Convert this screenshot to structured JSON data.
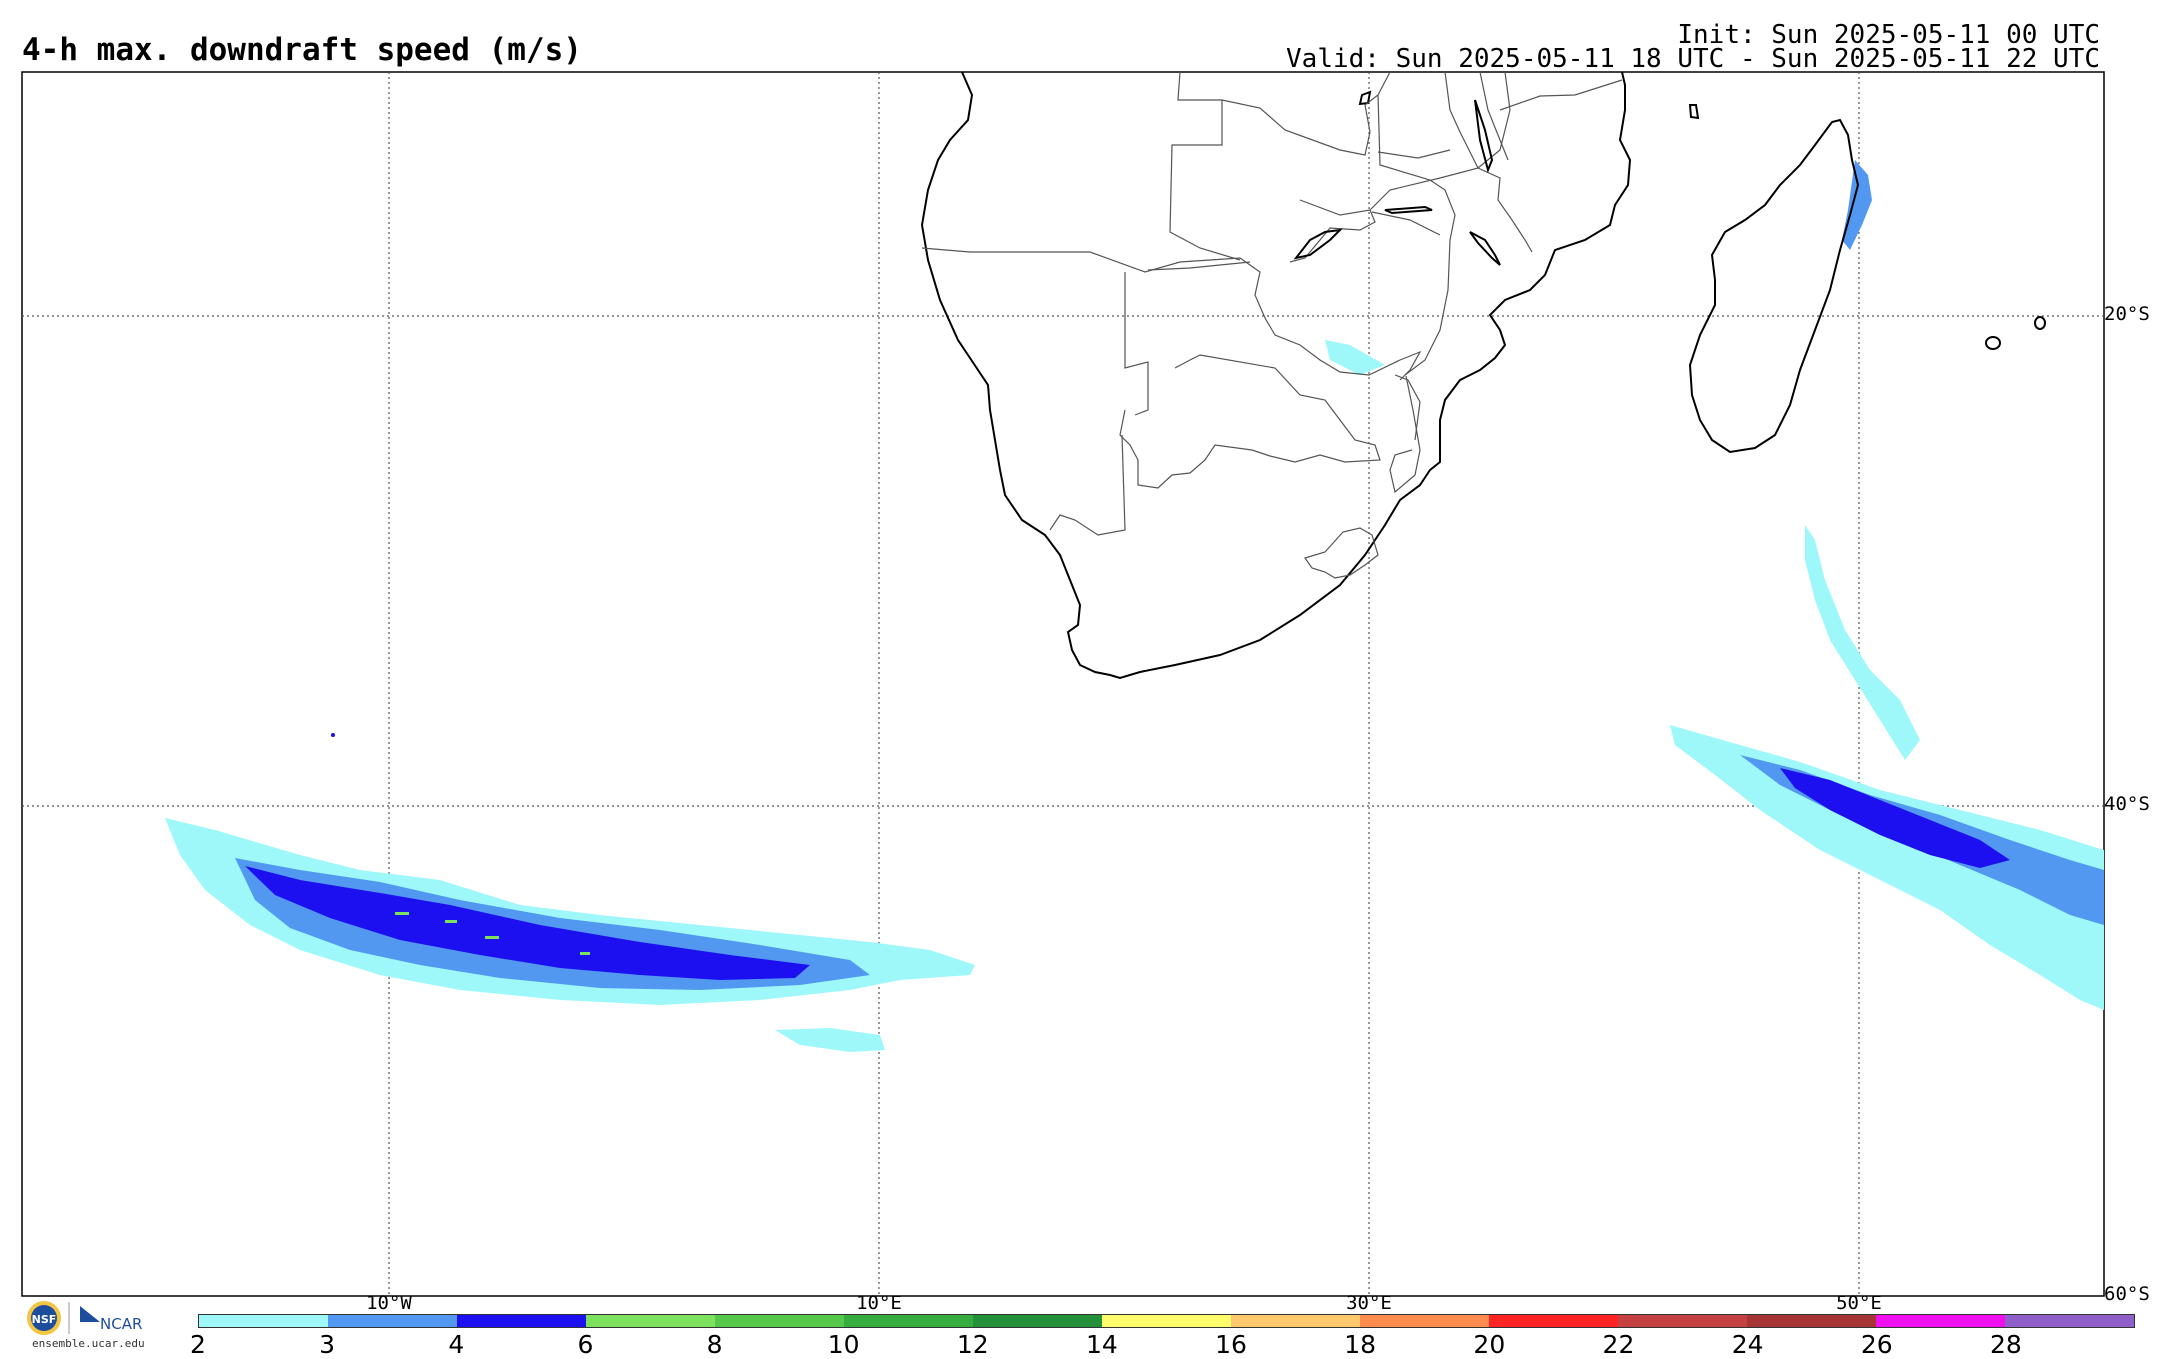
{
  "title": "4-h max. downdraft speed (m/s)",
  "init": "Init: Sun 2025-05-11 00 UTC",
  "valid": "Valid: Sun 2025-05-11 18 UTC - Sun 2025-05-11 22 UTC",
  "lat_labels": [
    "20°S",
    "40°S",
    "60°S"
  ],
  "lon_labels": [
    "10°W",
    "10°E",
    "30°E",
    "50°E"
  ],
  "logo": {
    "org": "NCAR",
    "site": "ensemble.ucar.edu"
  },
  "colorbar": {
    "ticks": [
      "2",
      "3",
      "4",
      "6",
      "8",
      "10",
      "12",
      "14",
      "16",
      "18",
      "20",
      "22",
      "24",
      "26",
      "28"
    ],
    "colors": [
      "#9ef8fa",
      "#5298f0",
      "#1c0ff0",
      "#7ce25e",
      "#56c94b",
      "#36ad3e",
      "#23913a",
      "#fffd6b",
      "#ffc86c",
      "#ff8b4e",
      "#ff2423",
      "#c54141",
      "#a53434",
      "#ef0fef",
      "#8f60c9"
    ]
  }
}
